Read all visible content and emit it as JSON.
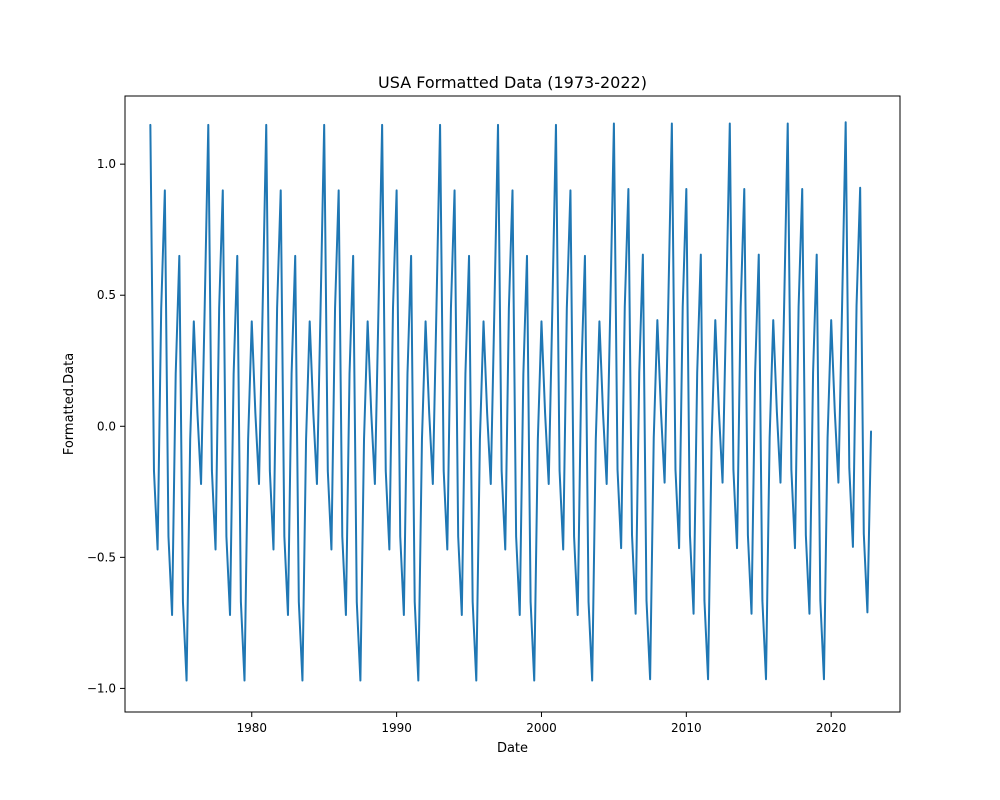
{
  "colors": {
    "series": "#1f77b4",
    "background": "#ffffff",
    "axes": "#000000"
  },
  "chart_data": {
    "type": "line",
    "title": "USA Formatted Data (1973-2022)",
    "xlabel": "Date",
    "ylabel": "Formatted.Data",
    "xlim": [
      1971.25,
      2024.75
    ],
    "ylim": [
      -1.09,
      1.26
    ],
    "xticks": [
      {
        "value": 1980,
        "label": "1980"
      },
      {
        "value": 1990,
        "label": "1990"
      },
      {
        "value": 2000,
        "label": "2000"
      },
      {
        "value": 2010,
        "label": "2010"
      },
      {
        "value": 2020,
        "label": "2020"
      }
    ],
    "yticks": [
      {
        "value": -1.0,
        "label": "−1.0"
      },
      {
        "value": -0.5,
        "label": "−0.5"
      },
      {
        "value": 0.0,
        "label": "0.0"
      },
      {
        "value": 0.5,
        "label": "0.5"
      },
      {
        "value": 1.0,
        "label": "1.0"
      }
    ],
    "grid": false,
    "legend": "none",
    "series": [
      {
        "x": [
          1973.0,
          1973.25,
          1973.5,
          1973.75,
          1974.0,
          1974.25,
          1974.5,
          1974.75,
          1975.0,
          1975.25,
          1975.5,
          1975.75,
          1976.0,
          1976.25,
          1976.5,
          1976.75,
          1977.0,
          1977.25,
          1977.5,
          1977.75,
          1978.0,
          1978.25,
          1978.5,
          1978.75,
          1979.0,
          1979.25,
          1979.5,
          1979.75,
          1980.0,
          1980.25,
          1980.5,
          1980.75,
          1981.0,
          1981.25,
          1981.5,
          1981.75,
          1982.0,
          1982.25,
          1982.5,
          1982.75,
          1983.0,
          1983.25,
          1983.5,
          1983.75,
          1984.0,
          1984.25,
          1984.5,
          1984.75,
          1985.0,
          1985.25,
          1985.5,
          1985.75,
          1986.0,
          1986.25,
          1986.5,
          1986.75,
          1987.0,
          1987.25,
          1987.5,
          1987.75,
          1988.0,
          1988.25,
          1988.5,
          1988.75,
          1989.0,
          1989.25,
          1989.5,
          1989.75,
          1990.0,
          1990.25,
          1990.5,
          1990.75,
          1991.0,
          1991.25,
          1991.5,
          1991.75,
          1992.0,
          1992.25,
          1992.5,
          1992.75,
          1993.0,
          1993.25,
          1993.5,
          1993.75,
          1994.0,
          1994.25,
          1994.5,
          1994.75,
          1995.0,
          1995.25,
          1995.5,
          1995.75,
          1996.0,
          1996.25,
          1996.5,
          1996.75,
          1997.0,
          1997.25,
          1997.5,
          1997.75,
          1998.0,
          1998.25,
          1998.5,
          1998.75,
          1999.0,
          1999.25,
          1999.5,
          1999.75,
          2000.0,
          2000.25,
          2000.5,
          2000.75,
          2001.0,
          2001.25,
          2001.5,
          2001.75,
          2002.0,
          2002.25,
          2002.5,
          2002.75,
          2003.0,
          2003.25,
          2003.5,
          2003.75,
          2004.0,
          2004.25,
          2004.5,
          2004.75,
          2005.0,
          2005.25,
          2005.5,
          2005.75,
          2006.0,
          2006.25,
          2006.5,
          2006.75,
          2007.0,
          2007.25,
          2007.5,
          2007.75,
          2008.0,
          2008.25,
          2008.5,
          2008.75,
          2009.0,
          2009.25,
          2009.5,
          2009.75,
          2010.0,
          2010.25,
          2010.5,
          2010.75,
          2011.0,
          2011.25,
          2011.5,
          2011.75,
          2012.0,
          2012.25,
          2012.5,
          2012.75,
          2013.0,
          2013.25,
          2013.5,
          2013.75,
          2014.0,
          2014.25,
          2014.5,
          2014.75,
          2015.0,
          2015.25,
          2015.5,
          2015.75,
          2016.0,
          2016.25,
          2016.5,
          2016.75,
          2017.0,
          2017.25,
          2017.5,
          2017.75,
          2018.0,
          2018.25,
          2018.5,
          2018.75,
          2019.0,
          2019.25,
          2019.5,
          2019.75,
          2020.0,
          2020.25,
          2020.5,
          2020.75,
          2021.0,
          2021.25,
          2021.5,
          2021.75,
          2022.0,
          2022.25,
          2022.5,
          2022.75
        ],
        "y": [
          1.15,
          -0.17,
          -0.47,
          0.45,
          0.9,
          -0.42,
          -0.72,
          0.2,
          0.65,
          -0.67,
          -0.97,
          -0.05,
          0.4,
          0.05,
          -0.22,
          0.45,
          1.15,
          -0.17,
          -0.47,
          0.45,
          0.9,
          -0.42,
          -0.72,
          0.2,
          0.65,
          -0.67,
          -0.97,
          -0.05,
          0.4,
          0.05,
          -0.22,
          0.45,
          1.15,
          -0.17,
          -0.47,
          0.45,
          0.9,
          -0.42,
          -0.72,
          0.2,
          0.65,
          -0.67,
          -0.97,
          -0.05,
          0.4,
          0.05,
          -0.22,
          0.45,
          1.15,
          -0.17,
          -0.47,
          0.45,
          0.9,
          -0.42,
          -0.72,
          0.2,
          0.65,
          -0.67,
          -0.97,
          -0.05,
          0.4,
          0.05,
          -0.22,
          0.45,
          1.15,
          -0.17,
          -0.47,
          0.45,
          0.9,
          -0.42,
          -0.72,
          0.2,
          0.65,
          -0.67,
          -0.97,
          -0.05,
          0.4,
          0.05,
          -0.22,
          0.45,
          1.15,
          -0.17,
          -0.47,
          0.45,
          0.9,
          -0.42,
          -0.72,
          0.2,
          0.65,
          -0.67,
          -0.97,
          -0.05,
          0.4,
          0.05,
          -0.22,
          0.45,
          1.15,
          -0.17,
          -0.47,
          0.45,
          0.9,
          -0.42,
          -0.72,
          0.2,
          0.65,
          -0.67,
          -0.97,
          -0.05,
          0.4,
          0.05,
          -0.22,
          0.45,
          1.15,
          -0.17,
          -0.47,
          0.45,
          0.9,
          -0.42,
          -0.72,
          0.2,
          0.65,
          -0.67,
          -0.97,
          -0.05,
          0.4,
          0.05,
          -0.22,
          0.45,
          1.155,
          -0.165,
          -0.465,
          0.455,
          0.905,
          -0.415,
          -0.715,
          0.205,
          0.655,
          -0.665,
          -0.965,
          -0.045,
          0.405,
          0.055,
          -0.215,
          0.455,
          1.155,
          -0.165,
          -0.465,
          0.455,
          0.905,
          -0.415,
          -0.715,
          0.205,
          0.655,
          -0.665,
          -0.965,
          -0.045,
          0.405,
          0.055,
          -0.215,
          0.455,
          1.155,
          -0.165,
          -0.465,
          0.455,
          0.905,
          -0.415,
          -0.715,
          0.205,
          0.655,
          -0.665,
          -0.965,
          -0.045,
          0.405,
          0.055,
          -0.215,
          0.455,
          1.155,
          -0.165,
          -0.465,
          0.455,
          0.905,
          -0.415,
          -0.715,
          0.205,
          0.655,
          -0.665,
          -0.965,
          -0.045,
          0.405,
          0.055,
          -0.215,
          0.455,
          1.16,
          -0.16,
          -0.46,
          0.46,
          0.91,
          -0.41,
          -0.71,
          -0.02
        ]
      }
    ]
  }
}
